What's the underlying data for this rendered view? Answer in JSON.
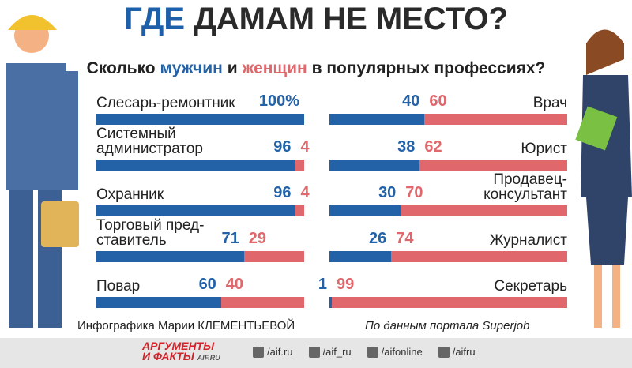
{
  "title": {
    "accent": "ГДЕ",
    "rest": "ДАМАМ НЕ МЕСТО?"
  },
  "subtitle": {
    "start": "Сколько",
    "men": "мужчин",
    "and": "и",
    "women": "женщин",
    "end": "в популярных профессиях?"
  },
  "chart_data": [
    {
      "type": "stacked-bar-h",
      "label_side": "left",
      "categories": [
        "Слесарь-ремонтник",
        "Системный\nадминистратор",
        "Охранник",
        "Торговый пред-\nставитель",
        "Повар"
      ],
      "xlim": [
        0,
        100
      ],
      "series": [
        {
          "color": "#2462a8",
          "values": [
            100,
            96,
            96,
            71,
            60
          ],
          "value_labels": [
            "100%",
            "96",
            "96",
            "71",
            "60"
          ]
        },
        {
          "color": "#e0686c",
          "values": [
            0,
            4,
            4,
            29,
            40
          ],
          "value_labels": [
            null,
            "4",
            "4",
            "29",
            "40"
          ]
        }
      ]
    },
    {
      "type": "stacked-bar-h",
      "label_side": "right",
      "categories": [
        "Врач",
        "Юрист",
        "Продавец-\nконсультант",
        "Журналист",
        "Секретарь"
      ],
      "xlim": [
        0,
        100
      ],
      "series": [
        {
          "color": "#2462a8",
          "values": [
            40,
            38,
            30,
            26,
            1
          ],
          "value_labels": [
            "40",
            "38",
            "30",
            "26",
            "1"
          ]
        },
        {
          "color": "#e0686c",
          "values": [
            60,
            62,
            70,
            74,
            99
          ],
          "value_labels": [
            "60",
            "62",
            "70",
            "74",
            "99"
          ]
        }
      ]
    }
  ],
  "credit": "Инфографика Марии КЛЕМЕНТЬЕВОЙ",
  "source": "По данным портала Superjob",
  "footer": {
    "logo_top": "АРГУМЕНТЫ",
    "logo_bottom": "И ФАКТЫ",
    "logo_site": "AIF.RU",
    "links": [
      "/aif.ru",
      "/aif_ru",
      "/aifonline",
      "/aifru"
    ]
  }
}
